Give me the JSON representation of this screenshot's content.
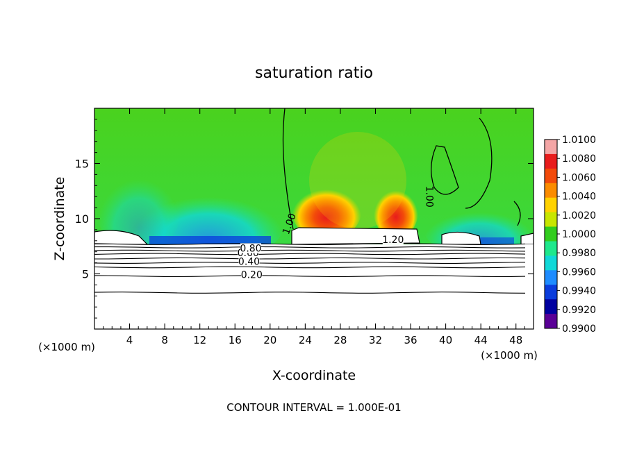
{
  "chart_data": {
    "type": "heatmap",
    "title": "saturation ratio",
    "xlabel": "X-coordinate",
    "ylabel": "Z-coordinate",
    "x_unit_left": "(×1000 m)",
    "x_unit_right": "(×1000 m)",
    "xlim": [
      0,
      50
    ],
    "ylim": [
      0,
      20
    ],
    "x_ticks": [
      "4",
      "8",
      "12",
      "16",
      "20",
      "24",
      "28",
      "32",
      "36",
      "40",
      "44",
      "48"
    ],
    "y_ticks": [
      "5",
      "10",
      "15"
    ],
    "colorbar": {
      "min": 0.99,
      "max": 1.01,
      "labels": [
        "1.0100",
        "1.0080",
        "1.0060",
        "1.0040",
        "1.0020",
        "1.0000",
        "0.9980",
        "0.9960",
        "0.9940",
        "0.9920",
        "0.9900"
      ],
      "colors": [
        "#f4a6a6",
        "#e81c1c",
        "#f24a0a",
        "#fb8c00",
        "#ffd200",
        "#c8e600",
        "#32cd1e",
        "#1ee88c",
        "#10d8d8",
        "#1e8cff",
        "#0a3cdc",
        "#0000a0",
        "#5a0096"
      ]
    },
    "contour_labels": [
      {
        "text": "0.20",
        "x": 17.9,
        "z": 4.8
      },
      {
        "text": "0.40",
        "x": 17.6,
        "z": 6.0
      },
      {
        "text": "0.60",
        "x": 17.5,
        "z": 6.8
      },
      {
        "text": "0.80",
        "x": 17.8,
        "z": 7.2
      },
      {
        "text": "1.20",
        "x": 34.0,
        "z": 8.0
      },
      {
        "text": "1.00",
        "x": 38.0,
        "z": 12.0
      },
      {
        "text": "1.00",
        "x": 22.3,
        "z": 9.5
      }
    ],
    "contour_levels_z": [
      3.3,
      4.8,
      5.6,
      6.0,
      6.4,
      6.8,
      7.1,
      7.4,
      7.7
    ]
  },
  "footer": {
    "interval_text": "CONTOUR INTERVAL = 1.000E-01"
  }
}
